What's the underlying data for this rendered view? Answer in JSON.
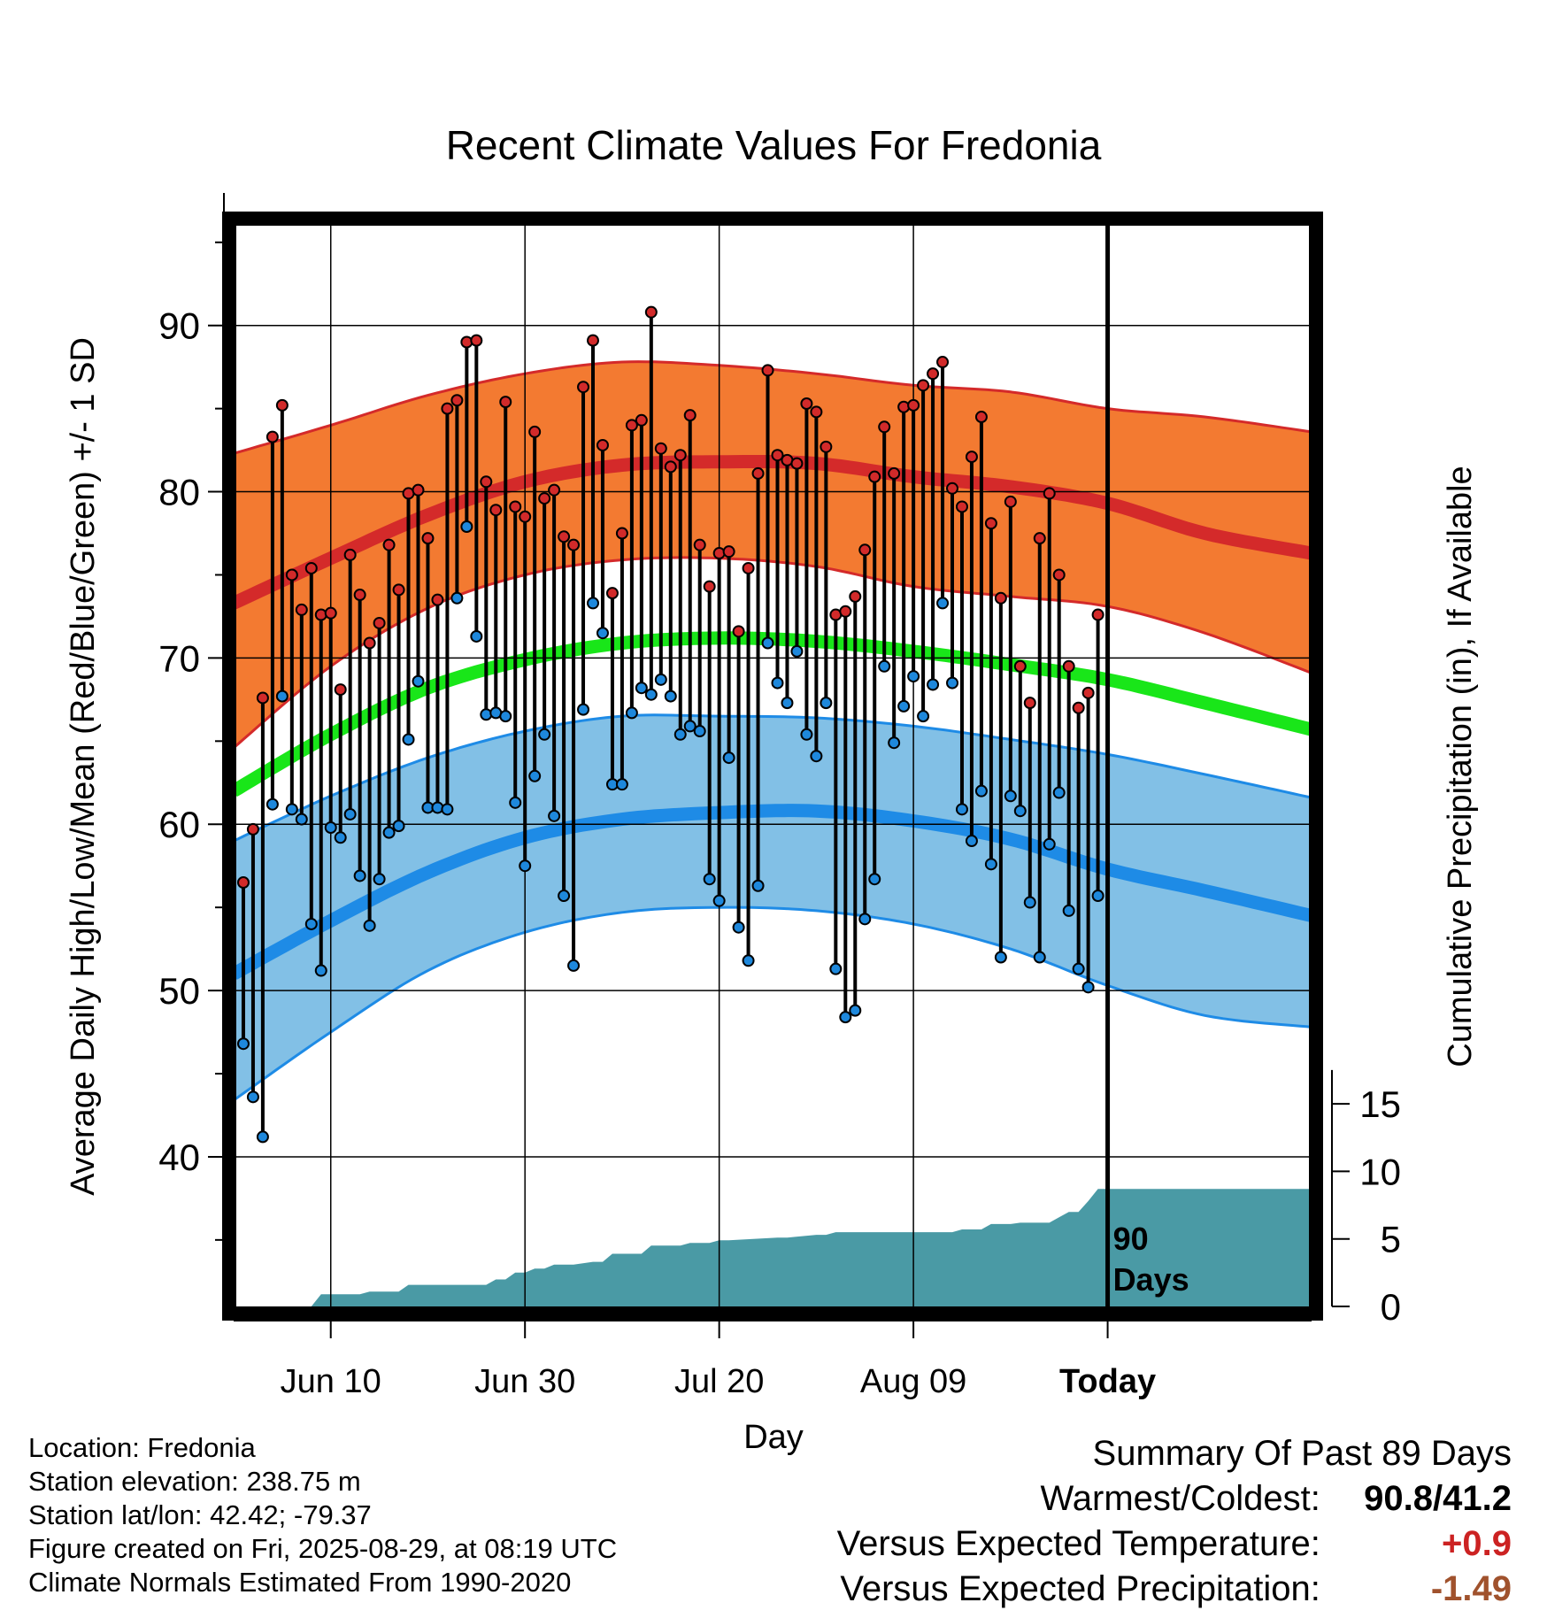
{
  "chart_data": {
    "type": "line",
    "title": "Recent Climate Values For Fredonia",
    "xlabel": "Day",
    "ylabel": "Average Daily High/Low/Mean (Red/Blue/Green) +/- 1 SD",
    "ylabel_right": "Cumulative Precipitation (in), If Available",
    "x_range": [
      "2025-05-31",
      "2025-09-19"
    ],
    "ylim": [
      31,
      96
    ],
    "ylim_right": [
      0,
      80
    ],
    "y_ticks": [
      40,
      50,
      60,
      70,
      80,
      90
    ],
    "y_ticks_right": [
      0,
      5,
      10,
      15
    ],
    "x_ticks": [
      {
        "date": "2025-06-10",
        "label": "Jun 10",
        "bold": false
      },
      {
        "date": "2025-06-30",
        "label": "Jun 30",
        "bold": false
      },
      {
        "date": "2025-07-20",
        "label": "Jul 20",
        "bold": false
      },
      {
        "date": "2025-08-09",
        "label": "Aug 09",
        "bold": false
      },
      {
        "date": "2025-08-29",
        "label": "Today",
        "bold": true
      }
    ],
    "today_marker": {
      "date": "2025-08-29",
      "label_line1": "90",
      "label_line2": "Days"
    },
    "grid": true,
    "normals": {
      "dates": [
        "2025-05-31",
        "2025-06-10",
        "2025-06-20",
        "2025-06-30",
        "2025-07-10",
        "2025-07-20",
        "2025-07-30",
        "2025-08-09",
        "2025-08-19",
        "2025-08-29",
        "2025-09-08",
        "2025-09-19"
      ],
      "high_mean": [
        73.3,
        76.0,
        78.6,
        80.6,
        81.6,
        81.8,
        81.7,
        80.9,
        80.3,
        79.3,
        77.5,
        76.3
      ],
      "high_upper": [
        82.3,
        84.0,
        85.8,
        87.1,
        87.8,
        87.6,
        87.1,
        86.4,
        86.0,
        85.0,
        84.5,
        83.6
      ],
      "high_lower": [
        64.6,
        69.5,
        73.0,
        75.0,
        75.9,
        76.0,
        75.5,
        74.3,
        73.7,
        73.1,
        71.5,
        69.1
      ],
      "low_mean": [
        51.0,
        54.2,
        57.1,
        59.2,
        60.3,
        60.7,
        60.8,
        60.2,
        59.1,
        57.3,
        56.0,
        54.5
      ],
      "low_upper": [
        59.0,
        61.7,
        64.0,
        65.6,
        66.5,
        66.5,
        66.4,
        65.9,
        65.1,
        64.2,
        63.0,
        61.6
      ],
      "low_lower": [
        43.4,
        47.5,
        51.2,
        53.5,
        54.7,
        55.0,
        54.8,
        54.0,
        52.5,
        50.3,
        48.5,
        47.8
      ],
      "mean": [
        62.0,
        65.4,
        68.2,
        69.9,
        70.9,
        71.2,
        71.0,
        70.4,
        69.6,
        68.7,
        67.3,
        65.7
      ]
    },
    "daily": {
      "start_date": "2025-06-01",
      "high": [
        56.5,
        59.7,
        67.6,
        83.3,
        85.2,
        75.0,
        72.9,
        75.4,
        72.6,
        72.7,
        68.1,
        76.2,
        73.8,
        70.9,
        72.1,
        76.8,
        74.1,
        79.9,
        80.1,
        77.2,
        73.5,
        85.0,
        85.5,
        89.0,
        89.1,
        80.6,
        78.9,
        85.4,
        79.1,
        78.5,
        83.6,
        79.6,
        80.1,
        77.3,
        76.8,
        86.3,
        89.1,
        82.8,
        73.9,
        77.5,
        84.0,
        84.3,
        90.8,
        82.6,
        81.5,
        82.2,
        84.6,
        76.8,
        74.3,
        76.3,
        76.4,
        71.6,
        75.4,
        81.1,
        87.3,
        82.2,
        81.9,
        81.7,
        85.3,
        84.8,
        82.7,
        72.6,
        72.8,
        73.7,
        76.5,
        80.9,
        83.9,
        81.1,
        85.1,
        85.2,
        86.4,
        87.1,
        87.8,
        80.2,
        79.1,
        82.1,
        84.5,
        78.1,
        73.6,
        79.4,
        69.5,
        67.3,
        77.2,
        79.9,
        75.0,
        69.5,
        67.0,
        67.9,
        72.6
      ],
      "low": [
        46.8,
        43.6,
        41.2,
        61.2,
        67.7,
        60.9,
        60.3,
        54.0,
        51.2,
        59.8,
        59.2,
        60.6,
        56.9,
        53.9,
        56.7,
        59.5,
        59.9,
        65.1,
        68.6,
        61.0,
        61.0,
        60.9,
        73.6,
        77.9,
        71.3,
        66.6,
        66.7,
        66.5,
        61.3,
        57.5,
        62.9,
        65.4,
        60.5,
        55.7,
        51.5,
        66.9,
        73.3,
        71.5,
        62.4,
        62.4,
        66.7,
        68.2,
        67.8,
        68.7,
        67.7,
        65.4,
        65.9,
        65.6,
        56.7,
        55.4,
        64.0,
        53.8,
        51.8,
        56.3,
        70.9,
        68.5,
        67.3,
        70.4,
        65.4,
        64.1,
        67.3,
        51.3,
        48.4,
        48.8,
        54.3,
        56.7,
        69.5,
        64.9,
        67.1,
        68.9,
        66.5,
        68.4,
        73.3,
        68.5,
        60.9,
        59.0,
        62.0,
        57.6,
        52.0,
        61.7,
        60.8,
        55.3,
        52.0,
        58.8,
        61.9,
        54.8,
        51.3,
        50.2,
        55.7
      ]
    },
    "precip_cumulative": {
      "dates": [
        "2025-05-31",
        "2025-06-08",
        "2025-06-09",
        "2025-06-13",
        "2025-06-14",
        "2025-06-17",
        "2025-06-18",
        "2025-06-19",
        "2025-06-26",
        "2025-06-27",
        "2025-06-28",
        "2025-06-29",
        "2025-06-30",
        "2025-07-01",
        "2025-07-02",
        "2025-07-03",
        "2025-07-05",
        "2025-07-07",
        "2025-07-08",
        "2025-07-09",
        "2025-07-12",
        "2025-07-13",
        "2025-07-16",
        "2025-07-17",
        "2025-07-19",
        "2025-07-20",
        "2025-07-21",
        "2025-07-26",
        "2025-07-27",
        "2025-07-30",
        "2025-07-31",
        "2025-08-01",
        "2025-08-13",
        "2025-08-14",
        "2025-08-16",
        "2025-08-17",
        "2025-08-19",
        "2025-08-20",
        "2025-08-23",
        "2025-08-24",
        "2025-08-25",
        "2025-08-26",
        "2025-08-27",
        "2025-08-28",
        "2025-09-19"
      ],
      "values": [
        0.0,
        0.0,
        0.9,
        0.9,
        1.1,
        1.1,
        1.6,
        1.6,
        1.6,
        2.0,
        2.0,
        2.5,
        2.5,
        2.8,
        2.8,
        3.1,
        3.1,
        3.3,
        3.3,
        3.9,
        3.9,
        4.5,
        4.5,
        4.7,
        4.7,
        4.9,
        4.9,
        5.1,
        5.1,
        5.3,
        5.3,
        5.5,
        5.5,
        5.7,
        5.7,
        6.1,
        6.1,
        6.2,
        6.2,
        6.6,
        7.0,
        7.0,
        7.8,
        8.7,
        8.7
      ]
    }
  },
  "info": {
    "location": "Location: Fredonia",
    "elevation": "Station elevation: 238.75 m",
    "latlon": "Station lat/lon: 42.42; -79.37",
    "created": "Figure created on Fri, 2025-08-29, at 08:19 UTC",
    "normals": "Climate Normals Estimated From 1990-2020"
  },
  "summary": {
    "title": "Summary Of Past 89 Days",
    "warm_cold_label": "Warmest/Coldest:",
    "warm_cold_value": "90.8/41.2",
    "temp_label": "Versus Expected Temperature:",
    "temp_value": "+0.9",
    "precip_label": "Versus Expected Precipitation:",
    "precip_value": "-1.49"
  },
  "colors": {
    "high_band": "#f37a31",
    "high_line": "#d42a2a",
    "low_band": "#82c0e6",
    "low_line": "#1e8be6",
    "mean_line": "#19e619",
    "precip_fill": "#4a9aa5",
    "high_dot": "#d22a2a",
    "low_dot": "#1e88dc"
  }
}
